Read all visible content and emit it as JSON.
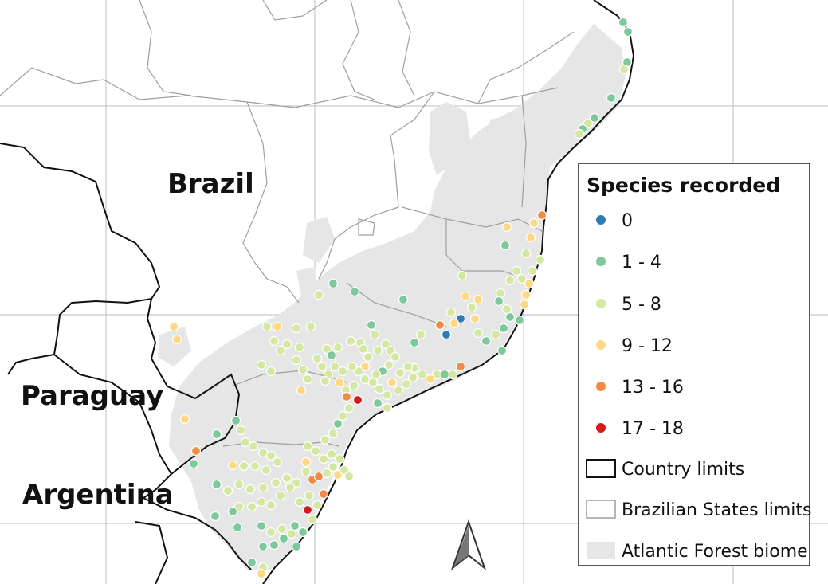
{
  "countries": {
    "brazil": "Brazil",
    "paraguay": "Paraguay",
    "argentina": "Argentina"
  },
  "legend": {
    "title": "Species recorded",
    "classes": [
      {
        "label": "0",
        "color": "#2c7bb6"
      },
      {
        "label": "1 - 4",
        "color": "#7ec99a"
      },
      {
        "label": "5 - 8",
        "color": "#d4e8a2"
      },
      {
        "label": "9 - 12",
        "color": "#fdd985"
      },
      {
        "label": "13 - 16",
        "color": "#f08c46"
      },
      {
        "label": "17 - 18",
        "color": "#d7191c"
      }
    ],
    "country_limits": "Country limits",
    "state_limits": "Brazilian States limits",
    "biome": "Atlantic Forest biome"
  },
  "colors": {
    "biome_fill": "#e6e6e6",
    "country_line": "#111111",
    "state_line": "#9e9e9e",
    "grid_line": "#bdbdbd"
  },
  "icons": [
    "north-arrow-icon"
  ]
}
